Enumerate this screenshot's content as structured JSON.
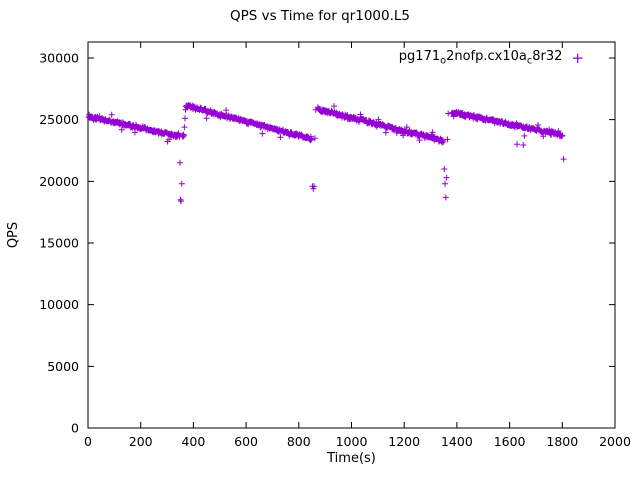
{
  "chart_data": {
    "type": "scatter",
    "title": "QPS vs Time for qr1000.L5",
    "xlabel": "Time(s)",
    "ylabel": "QPS",
    "xlim": [
      0,
      2000
    ],
    "ylim": [
      0,
      30000
    ],
    "xtick_step": 200,
    "ytick_step": 5000,
    "grid": false,
    "marker": "plus",
    "color": "#9400d3",
    "legend": {
      "position": "top-right-inside",
      "series_name": "pg171_o2nofp.cx10a_c8r32",
      "parts": [
        {
          "text": "pg171"
        },
        {
          "text": "o",
          "sub": true
        },
        {
          "text": "2nofp.cx10a"
        },
        {
          "text": "c",
          "sub": true
        },
        {
          "text": "8r32"
        }
      ]
    },
    "pattern_note": "sawtooth: QPS declines within each ~500s cycle then resets after a brief dip",
    "series_segments": [
      {
        "t_start": 2,
        "t_end": 344,
        "q_start": 25250,
        "q_end": 23650,
        "noise": 230,
        "step": 2
      },
      {
        "t_start": 372,
        "t_end": 846,
        "q_start": 26150,
        "q_end": 23450,
        "noise": 230,
        "step": 2
      },
      {
        "t_start": 872,
        "t_end": 1346,
        "q_start": 25850,
        "q_end": 23300,
        "noise": 230,
        "step": 2
      },
      {
        "t_start": 1380,
        "t_end": 1800,
        "q_start": 25600,
        "q_end": 23750,
        "noise": 210,
        "step": 2
      }
    ],
    "outliers": [
      [
        344,
        23900
      ],
      [
        347,
        23600
      ],
      [
        349,
        21500
      ],
      [
        351,
        18500
      ],
      [
        353,
        18400
      ],
      [
        356,
        19800
      ],
      [
        358,
        23700
      ],
      [
        360,
        23600
      ],
      [
        362,
        23800
      ],
      [
        364,
        23700
      ],
      [
        366,
        24400
      ],
      [
        368,
        25100
      ],
      [
        370,
        25800
      ],
      [
        848,
        23400
      ],
      [
        852,
        19600
      ],
      [
        855,
        19400
      ],
      [
        858,
        19600
      ],
      [
        861,
        23500
      ],
      [
        864,
        25800
      ],
      [
        1348,
        23200
      ],
      [
        1352,
        21000
      ],
      [
        1355,
        19800
      ],
      [
        1358,
        18700
      ],
      [
        1361,
        20300
      ],
      [
        1364,
        23400
      ],
      [
        1367,
        25500
      ],
      [
        1628,
        23000
      ],
      [
        1652,
        22950
      ],
      [
        1805,
        21800
      ]
    ]
  }
}
